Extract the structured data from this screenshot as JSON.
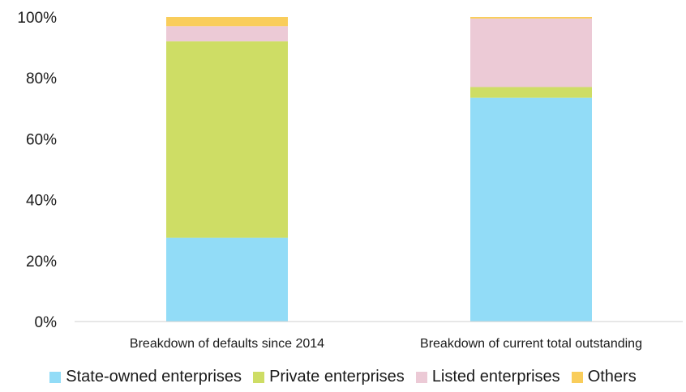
{
  "chart_data": {
    "type": "bar",
    "stacked": true,
    "categories": [
      "Breakdown of defaults since 2014",
      "Breakdown of current total outstanding"
    ],
    "series": [
      {
        "name": "State-owned enterprises",
        "color": "#92dcf7",
        "values": [
          27.5,
          73.5
        ]
      },
      {
        "name": "Private enterprises",
        "color": "#cedd65",
        "values": [
          64.5,
          3.5
        ]
      },
      {
        "name": "Listed enterprises",
        "color": "#eccad6",
        "values": [
          5.0,
          22.5
        ]
      },
      {
        "name": "Others",
        "color": "#f9cd5b",
        "values": [
          3.0,
          0.5
        ]
      }
    ],
    "ylim": [
      0,
      100
    ],
    "yticks": [
      "0%",
      "20%",
      "40%",
      "60%",
      "80%",
      "100%"
    ],
    "ytick_values": [
      0,
      20,
      40,
      60,
      80,
      100
    ],
    "grid": false,
    "legend_position": "bottom"
  }
}
